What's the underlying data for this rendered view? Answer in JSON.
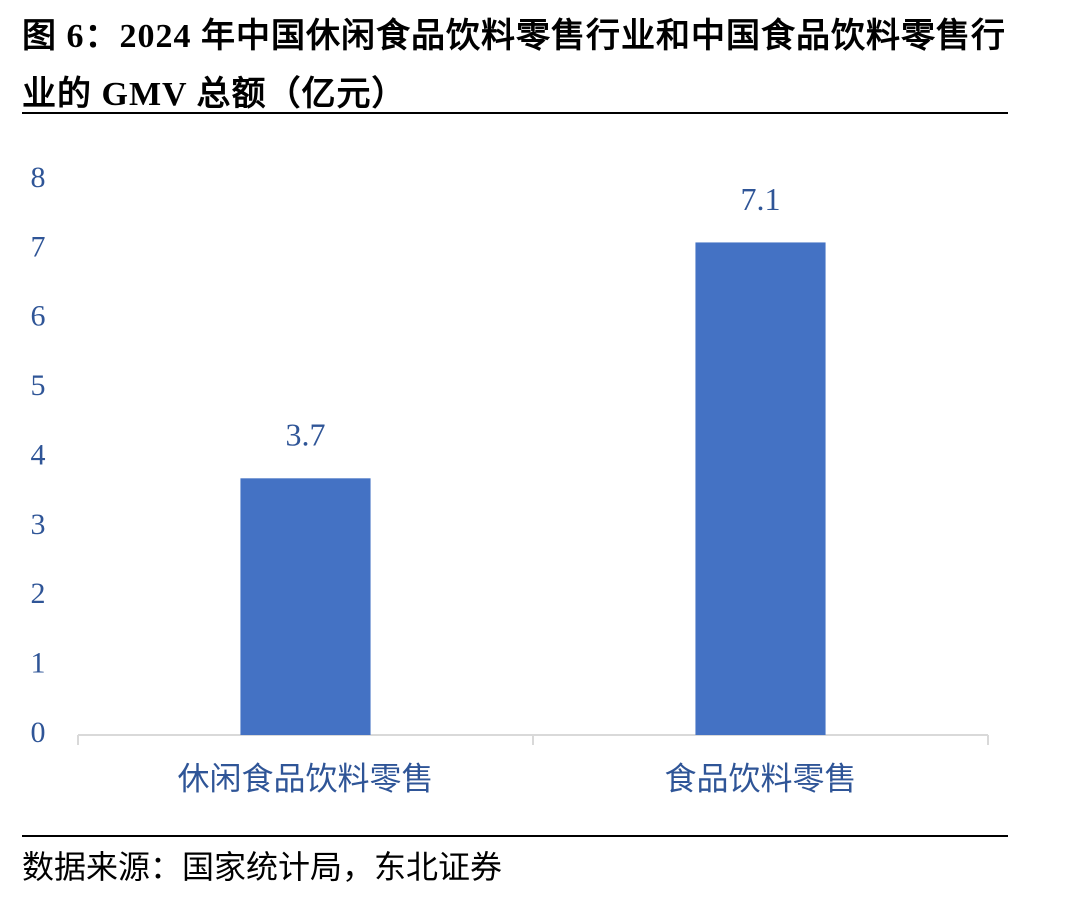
{
  "chart_data": {
    "type": "bar",
    "title": "图 6：2024 年中国休闲食品饮料零售行业和中国食品饮料零售行业的 GMV 总额（亿元）",
    "categories": [
      "休闲食品饮料零售",
      "食品饮料零售"
    ],
    "values": [
      3.7,
      7.1
    ],
    "color": "#4472c4",
    "ylim": [
      0,
      8
    ],
    "yticks": [
      0,
      1,
      2,
      3,
      4,
      5,
      6,
      7,
      8
    ],
    "grid": false,
    "source": "数据来源：国家统计局，东北证券"
  }
}
